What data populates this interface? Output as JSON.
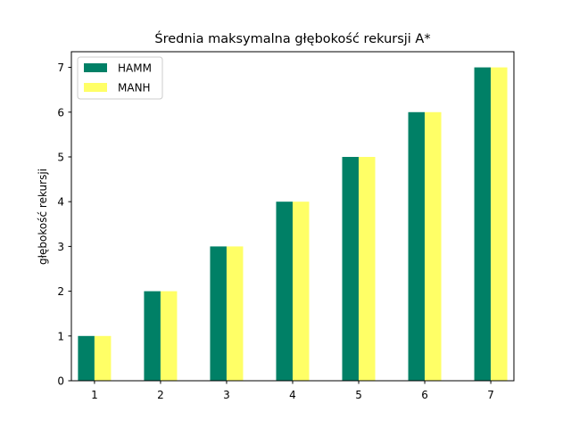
{
  "chart_data": {
    "type": "bar",
    "title": "Średnia maksymalna głębokość rekursji A*",
    "xlabel": "",
    "ylabel": "głębokość rekursji",
    "categories": [
      "1",
      "2",
      "3",
      "4",
      "5",
      "6",
      "7"
    ],
    "series": [
      {
        "name": "HAMM",
        "values": [
          1,
          2,
          3,
          4,
          5,
          6,
          7
        ],
        "color": "#008066"
      },
      {
        "name": "MANH",
        "values": [
          1,
          2,
          3,
          4,
          5,
          6,
          7
        ],
        "color": "#ffff66"
      }
    ],
    "ylim": [
      0,
      7.35
    ],
    "yticks": [
      "0",
      "1",
      "2",
      "3",
      "4",
      "5",
      "6",
      "7"
    ],
    "grid": false,
    "legend_position": "top-left"
  }
}
